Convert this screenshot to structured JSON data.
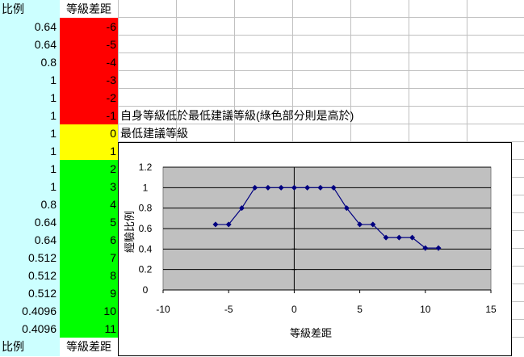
{
  "colors": {
    "colA_bg": "#ccffff",
    "red": "#ff0000",
    "yellow": "#ffff00",
    "green": "#00ff00",
    "plot_bg": "#c0c0c0",
    "series": "#000080"
  },
  "header": {
    "ratio": "比例",
    "diff": "等級差距"
  },
  "footer": {
    "ratio": "比例",
    "diff": "等級差距"
  },
  "rows": [
    {
      "ratio": "0.64",
      "diff": "-6",
      "color": "red"
    },
    {
      "ratio": "0.64",
      "diff": "-5",
      "color": "red"
    },
    {
      "ratio": "0.8",
      "diff": "-4",
      "color": "red"
    },
    {
      "ratio": "1",
      "diff": "-3",
      "color": "red"
    },
    {
      "ratio": "1",
      "diff": "-2",
      "color": "red"
    },
    {
      "ratio": "1",
      "diff": "-1",
      "color": "red"
    },
    {
      "ratio": "1",
      "diff": "0",
      "color": "yellow"
    },
    {
      "ratio": "1",
      "diff": "1",
      "color": "yellow"
    },
    {
      "ratio": "1",
      "diff": "2",
      "color": "green"
    },
    {
      "ratio": "1",
      "diff": "3",
      "color": "green"
    },
    {
      "ratio": "0.8",
      "diff": "4",
      "color": "green"
    },
    {
      "ratio": "0.64",
      "diff": "5",
      "color": "green"
    },
    {
      "ratio": "0.64",
      "diff": "6",
      "color": "green"
    },
    {
      "ratio": "0.512",
      "diff": "7",
      "color": "green"
    },
    {
      "ratio": "0.512",
      "diff": "8",
      "color": "green"
    },
    {
      "ratio": "0.512",
      "diff": "9",
      "color": "green"
    },
    {
      "ratio": "0.4096",
      "diff": "10",
      "color": "green"
    },
    {
      "ratio": "0.4096",
      "diff": "11",
      "color": "green"
    }
  ],
  "notes": {
    "lower": "自身等級低於最低建議等級(綠色部分則是高於)",
    "min": "最低建議等級"
  },
  "chart_data": {
    "type": "line",
    "x": [
      -6,
      -5,
      -4,
      -3,
      -2,
      -1,
      0,
      1,
      2,
      3,
      4,
      5,
      6,
      7,
      8,
      9,
      10,
      11
    ],
    "series": [
      {
        "values": [
          0.64,
          0.64,
          0.8,
          1,
          1,
          1,
          1,
          1,
          1,
          1,
          0.8,
          0.64,
          0.64,
          0.512,
          0.512,
          0.512,
          0.4096,
          0.4096
        ]
      }
    ],
    "xlabel": "等級差距",
    "ylabel": "經驗比例",
    "xlim": [
      -10,
      15
    ],
    "ylim": [
      0,
      1.2
    ],
    "xticks": [
      "-10",
      "-5",
      "0",
      "5",
      "10",
      "15"
    ],
    "yticks": [
      "0",
      "0.2",
      "0.4",
      "0.6",
      "0.8",
      "1",
      "1.2"
    ],
    "grid": "horizontal",
    "legend": "none"
  }
}
